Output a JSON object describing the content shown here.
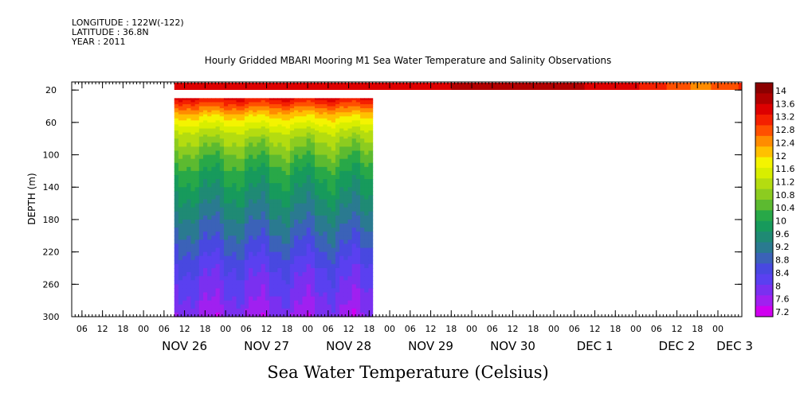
{
  "header": {
    "longitude": "LONGITUDE : 122W(-122)",
    "latitude": "LATITUDE : 36.8N",
    "year": "YEAR : 2011"
  },
  "chart_data": {
    "type": "heatmap",
    "title": "Hourly Gridded MBARI Mooring M1 Sea Water Temperature and Salinity Observations",
    "ylabel": "DEPTH (m)",
    "xlabel": "Sea Water Temperature (Celsius)",
    "ylim": [
      300,
      10
    ],
    "xlim": [
      "2011-11-25T03:00",
      "2011-12-03T07:00"
    ],
    "y_ticks": [
      20,
      60,
      100,
      140,
      180,
      220,
      260,
      300
    ],
    "x_hour_ticks": [
      "06",
      "12",
      "18",
      "00",
      "06",
      "12",
      "18",
      "00",
      "06",
      "12",
      "18",
      "00",
      "06",
      "12",
      "18",
      "00",
      "06",
      "12",
      "18",
      "00",
      "06",
      "12",
      "18",
      "00",
      "06",
      "12",
      "18",
      "00",
      "06",
      "12",
      "18",
      "00"
    ],
    "x_date_labels": [
      "NOV 26",
      "NOV 27",
      "NOV 28",
      "NOV 29",
      "NOV 30",
      "DEC  1",
      "DEC  2",
      "DEC  3"
    ],
    "colorbar": {
      "levels": [
        14,
        13.6,
        13.2,
        12.8,
        12.4,
        12,
        11.6,
        11.2,
        10.8,
        10.4,
        10,
        9.6,
        9.2,
        8.8,
        8.4,
        8,
        7.6,
        7.2
      ],
      "colors": [
        "#8b0000",
        "#b00000",
        "#dd0000",
        "#f42000",
        "#ff5000",
        "#ff8c00",
        "#ffc000",
        "#f4f400",
        "#d8ee00",
        "#b4dc10",
        "#8ccc20",
        "#5cba30",
        "#28a848",
        "#179a5c",
        "#1f8a74",
        "#2a7a90",
        "#3b62b8",
        "#4848e0",
        "#5a40f0",
        "#7a30f0",
        "#a020f0",
        "#d000f0"
      ]
    },
    "surface_series": {
      "depth_m": 10,
      "x": [
        "2011-11-26T09:00",
        "2011-11-28T00:00",
        "2011-11-29T12:00",
        "2011-11-30T06:00",
        "2011-12-01T00:00",
        "2011-12-01T18:00",
        "2011-12-02T06:00",
        "2011-12-02T18:00",
        "2011-12-03T06:00"
      ],
      "values": [
        13.4,
        13.3,
        13.4,
        13.8,
        13.6,
        13.4,
        13.0,
        12.4,
        12.9
      ]
    },
    "profile_data": {
      "x_range": [
        "2011-11-26T09:00",
        "2011-11-28T19:00"
      ],
      "depths_m": [
        30,
        40,
        50,
        60,
        70,
        80,
        100,
        120,
        140,
        160,
        180,
        200,
        220,
        240,
        260,
        280,
        300
      ],
      "typical_values": [
        13.2,
        12.6,
        12.0,
        11.6,
        11.2,
        10.9,
        10.4,
        10.0,
        9.7,
        9.4,
        9.1,
        8.8,
        8.5,
        8.2,
        8.0,
        7.8,
        7.6
      ]
    }
  }
}
